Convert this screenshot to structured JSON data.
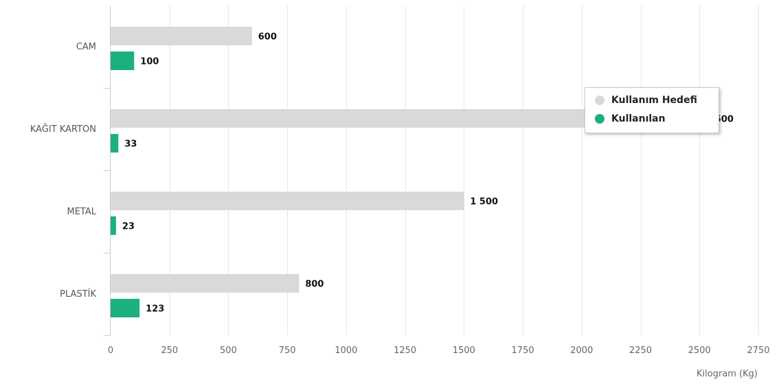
{
  "chart_data": {
    "type": "bar",
    "orientation": "horizontal",
    "categories": [
      "CAM",
      "KAĞIT KARTON",
      "METAL",
      "PLASTİK"
    ],
    "series": [
      {
        "name": "Kullanım Hedefi",
        "values": [
          600,
          2500,
          1500,
          800
        ],
        "labels": [
          "600",
          "2 500",
          "1 500",
          "800"
        ],
        "color": "#d9d9d9"
      },
      {
        "name": "Kullanılan",
        "values": [
          100,
          33,
          23,
          123
        ],
        "labels": [
          "100",
          "33",
          "23",
          "123"
        ],
        "color": "#1bb07d"
      }
    ],
    "xlabel": "Kilogram (Kg)",
    "xlim": [
      0,
      2750
    ],
    "xticks": [
      0,
      250,
      500,
      750,
      1000,
      1250,
      1500,
      1750,
      2000,
      2250,
      2500,
      2750
    ],
    "grid": true,
    "legend_position": "top-right"
  }
}
